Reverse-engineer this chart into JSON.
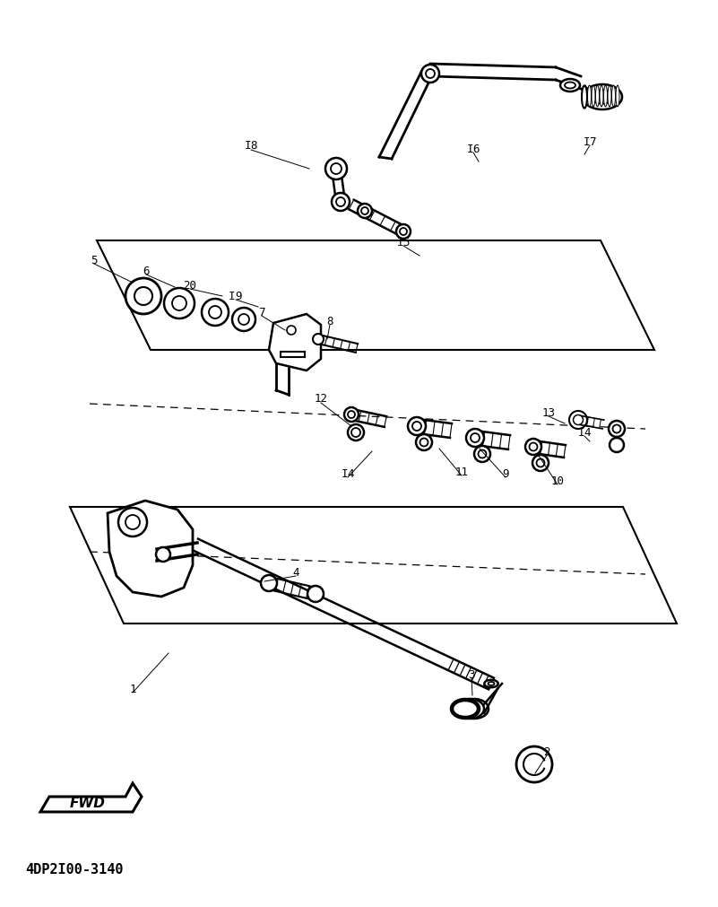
{
  "background_color": "#ffffff",
  "fig_width": 8.01,
  "fig_height": 10.11,
  "dpi": 100,
  "footnote": "4DP2I00-3140",
  "line_color": "#000000",
  "text_color": "#000000",
  "label_fontsize": 9,
  "footnote_fontsize": 11,
  "fwd_text": "FWD",
  "labels": [
    [
      "1",
      148,
      768,
      188,
      728
    ],
    [
      "2",
      610,
      838,
      597,
      862
    ],
    [
      "3",
      526,
      752,
      527,
      775
    ],
    [
      "4",
      330,
      638,
      295,
      648
    ],
    [
      "5",
      105,
      290,
      148,
      315
    ],
    [
      "6",
      163,
      302,
      195,
      320
    ],
    [
      "7",
      292,
      348,
      318,
      368
    ],
    [
      "8",
      368,
      358,
      365,
      378
    ],
    [
      "9",
      564,
      528,
      535,
      500
    ],
    [
      "10",
      622,
      536,
      601,
      508
    ],
    [
      "11",
      515,
      526,
      490,
      500
    ],
    [
      "12",
      358,
      445,
      392,
      475
    ],
    [
      "13",
      612,
      460,
      630,
      472
    ],
    [
      "I4",
      388,
      528,
      415,
      503
    ],
    [
      "I4",
      652,
      482,
      658,
      492
    ],
    [
      "I5",
      450,
      270,
      468,
      285
    ],
    [
      "I6",
      528,
      166,
      534,
      180
    ],
    [
      "I7",
      658,
      158,
      652,
      172
    ],
    [
      "I8",
      280,
      163,
      345,
      188
    ],
    [
      "I9",
      263,
      330,
      288,
      342
    ],
    [
      "20",
      212,
      318,
      248,
      330
    ]
  ]
}
